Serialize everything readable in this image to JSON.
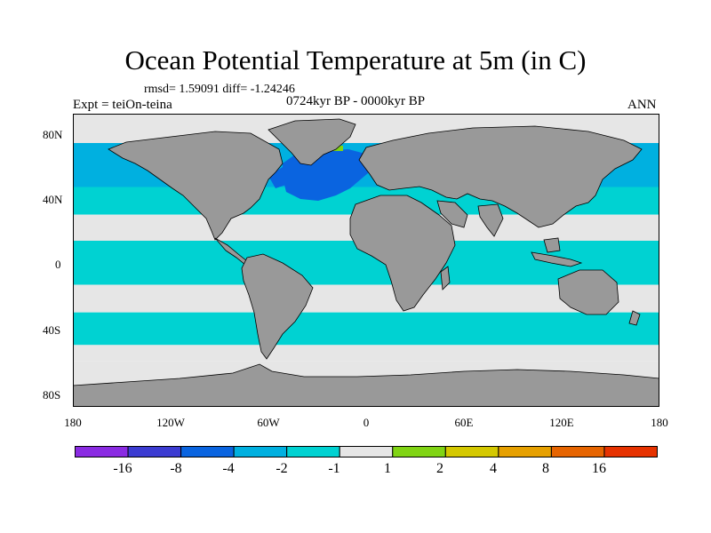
{
  "title": "Ocean Potential Temperature at 5m (in C)",
  "stats": "rmsd= 1.59091 diff= -1.24246",
  "experiment": "Expt = teiOn-teina",
  "period": "0724kyr BP - 0000kyr BP",
  "season": "ANN",
  "map": {
    "land_color": "#999999",
    "lat_ticks": [
      "80N",
      "40N",
      "0",
      "40S",
      "80S"
    ],
    "lon_ticks": [
      "180",
      "120W",
      "60W",
      "0",
      "60E",
      "120E",
      "180"
    ],
    "ocean_bands": [
      {
        "lat_range": [
          90,
          72
        ],
        "class": "-1 to 1",
        "color": "#e6e6e6"
      },
      {
        "lat_range": [
          72,
          45
        ],
        "class": "-4 to -2",
        "color": "#00b0e0"
      },
      {
        "lat_range": [
          45,
          28
        ],
        "class": "-2 to -1",
        "color": "#00d2d2"
      },
      {
        "lat_range": [
          28,
          12
        ],
        "class": "-1 to 1",
        "color": "#e6e6e6"
      },
      {
        "lat_range": [
          12,
          -15
        ],
        "class": "-2 to -1",
        "color": "#00d2d2"
      },
      {
        "lat_range": [
          -15,
          -32
        ],
        "class": "-1 to 1",
        "color": "#e6e6e6"
      },
      {
        "lat_range": [
          -32,
          -52
        ],
        "class": "-2 to -1",
        "color": "#00d2d2"
      },
      {
        "lat_range": [
          -52,
          -62
        ],
        "class": "-1 to 1",
        "color": "#e6e6e6"
      },
      {
        "lat_range": [
          -62,
          -90
        ],
        "class": "-1 to 1",
        "color": "#e6e6e6"
      }
    ],
    "north_atlantic_anomaly": {
      "class": "-8 to -4",
      "color": "#0a64e0"
    }
  },
  "colorbar": {
    "tick_labels": [
      "-16",
      "-8",
      "-4",
      "-2",
      "-1",
      "1",
      "2",
      "4",
      "8",
      "16"
    ],
    "colors": [
      "#8a2be2",
      "#3c3cd2",
      "#0a64e0",
      "#00b0e0",
      "#00d2d2",
      "#e6e6e6",
      "#80d414",
      "#d4c800",
      "#e6a000",
      "#e66400",
      "#e63200"
    ]
  }
}
